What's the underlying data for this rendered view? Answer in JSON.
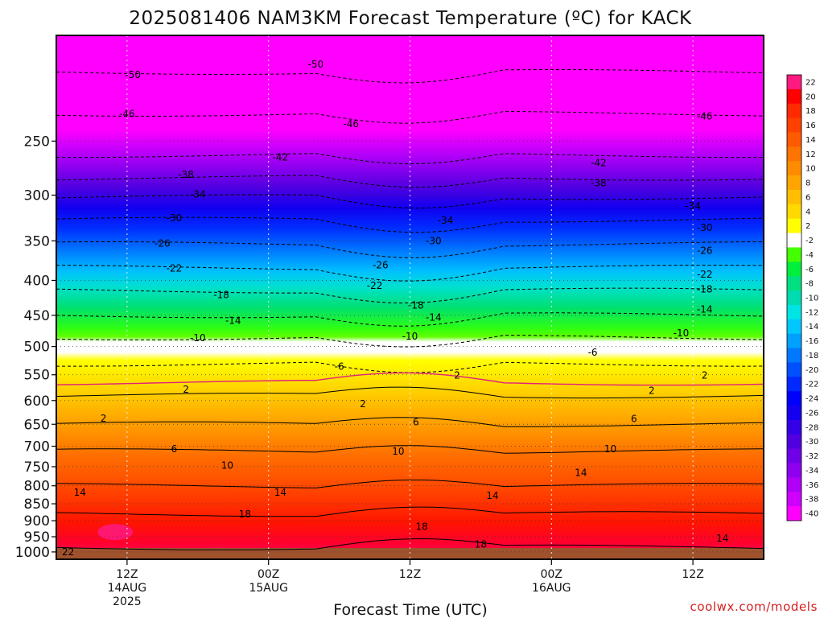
{
  "chart_data": {
    "type": "heatmap",
    "title": "2025081406 NAM3KM Forecast Temperature (ºC) for KACK",
    "xlabel": "Forecast Time (UTC)",
    "ylabel": "",
    "y_scale": "log-pressure",
    "ylim_hPa": [
      1025,
      175
    ],
    "y_ticks": [
      "250",
      "300",
      "350",
      "400",
      "450",
      "500",
      "550",
      "600",
      "650",
      "700",
      "750",
      "800",
      "850",
      "900",
      "950",
      "1000"
    ],
    "x_ticks": [
      {
        "hour": "12Z",
        "date": "14AUG",
        "year": "2025"
      },
      {
        "hour": "00Z",
        "date": "15AUG",
        "year": ""
      },
      {
        "hour": "12Z",
        "date": "",
        "year": ""
      },
      {
        "hour": "00Z",
        "date": "16AUG",
        "year": ""
      },
      {
        "hour": "12Z",
        "date": "",
        "year": ""
      }
    ],
    "xlim_hours": [
      6,
      66
    ],
    "grid": true,
    "legend": "right colorbar",
    "colorbar_ticks": [
      "22",
      "20",
      "18",
      "16",
      "14",
      "12",
      "10",
      "8",
      "6",
      "4",
      "2",
      "-2",
      "-4",
      "-6",
      "-8",
      "-10",
      "-12",
      "-14",
      "-16",
      "-18",
      "-20",
      "-22",
      "-24",
      "-26",
      "-28",
      "-30",
      "-32",
      "-34",
      "-36",
      "-38",
      "-40"
    ],
    "colorbar_colors": [
      "#ff1a80",
      "#ff0000",
      "#ff2a00",
      "#ff4000",
      "#ff5a00",
      "#ff7400",
      "#ff8c00",
      "#ffa400",
      "#ffbe00",
      "#ffd900",
      "#ffff00",
      "#ffffff",
      "#44ff00",
      "#00ee3c",
      "#00e080",
      "#00dcb0",
      "#00e4e4",
      "#00c8ff",
      "#00a0ff",
      "#0078ff",
      "#0050ff",
      "#0028ff",
      "#0000ff",
      "#1400f0",
      "#3400e8",
      "#5000e0",
      "#7000e8",
      "#9000f0",
      "#b000f8",
      "#d000ff",
      "#ff00ff"
    ],
    "isotherm_labels": [
      {
        "v": "-50",
        "t": 12.5,
        "p": 200,
        "dashed": true
      },
      {
        "v": "-50",
        "t": 28,
        "p": 193,
        "dashed": true
      },
      {
        "v": "-46",
        "t": 12,
        "p": 228,
        "dashed": true
      },
      {
        "v": "-46",
        "t": 31,
        "p": 236,
        "dashed": true
      },
      {
        "v": "-46",
        "t": 61,
        "p": 230,
        "dashed": true
      },
      {
        "v": "-42",
        "t": 25,
        "p": 264,
        "dashed": true
      },
      {
        "v": "-42",
        "t": 52,
        "p": 269,
        "dashed": true
      },
      {
        "v": "-38",
        "t": 17,
        "p": 280,
        "dashed": true
      },
      {
        "v": "-38",
        "t": 52,
        "p": 288,
        "dashed": true
      },
      {
        "v": "-34",
        "t": 18,
        "p": 299,
        "dashed": true
      },
      {
        "v": "-34",
        "t": 39,
        "p": 327,
        "dashed": true
      },
      {
        "v": "-34",
        "t": 60,
        "p": 311,
        "dashed": true
      },
      {
        "v": "-30",
        "t": 16,
        "p": 324,
        "dashed": true
      },
      {
        "v": "-30",
        "t": 38,
        "p": 350,
        "dashed": true
      },
      {
        "v": "-30",
        "t": 61,
        "p": 335,
        "dashed": true
      },
      {
        "v": "-26",
        "t": 15,
        "p": 353,
        "dashed": true
      },
      {
        "v": "-26",
        "t": 33.5,
        "p": 380,
        "dashed": true
      },
      {
        "v": "-26",
        "t": 61,
        "p": 362,
        "dashed": true
      },
      {
        "v": "-22",
        "t": 16,
        "p": 384,
        "dashed": true
      },
      {
        "v": "-22",
        "t": 33,
        "p": 407,
        "dashed": true
      },
      {
        "v": "-22",
        "t": 61,
        "p": 392,
        "dashed": true
      },
      {
        "v": "-18",
        "t": 20,
        "p": 420,
        "dashed": true
      },
      {
        "v": "-18",
        "t": 36.5,
        "p": 435,
        "dashed": true
      },
      {
        "v": "-18",
        "t": 61,
        "p": 412,
        "dashed": true
      },
      {
        "v": "-14",
        "t": 21,
        "p": 458,
        "dashed": true
      },
      {
        "v": "-14",
        "t": 38,
        "p": 453,
        "dashed": true
      },
      {
        "v": "-14",
        "t": 61,
        "p": 441,
        "dashed": true
      },
      {
        "v": "-10",
        "t": 18,
        "p": 486,
        "dashed": true
      },
      {
        "v": "-10",
        "t": 36,
        "p": 483,
        "dashed": true
      },
      {
        "v": "-10",
        "t": 59,
        "p": 478,
        "dashed": true
      },
      {
        "v": "-6",
        "t": 30,
        "p": 535,
        "dashed": true
      },
      {
        "v": "-6",
        "t": 51.5,
        "p": 510,
        "dashed": true
      },
      {
        "v": "2",
        "t": 17,
        "p": 578,
        "dashed": false
      },
      {
        "v": "2",
        "t": 40,
        "p": 551,
        "dashed": false
      },
      {
        "v": "2",
        "t": 61,
        "p": 551,
        "dashed": false
      },
      {
        "v": "2",
        "t": 10,
        "p": 637,
        "dashed": false
      },
      {
        "v": "2",
        "t": 32,
        "p": 607,
        "dashed": false
      },
      {
        "v": "2",
        "t": 56.5,
        "p": 580,
        "dashed": false
      },
      {
        "v": "6",
        "t": 16,
        "p": 707,
        "dashed": false
      },
      {
        "v": "6",
        "t": 36.5,
        "p": 645,
        "dashed": false
      },
      {
        "v": "6",
        "t": 55,
        "p": 638,
        "dashed": false
      },
      {
        "v": "10",
        "t": 20.5,
        "p": 747,
        "dashed": false
      },
      {
        "v": "10",
        "t": 35,
        "p": 712,
        "dashed": false
      },
      {
        "v": "10",
        "t": 53,
        "p": 707,
        "dashed": false
      },
      {
        "v": "14",
        "t": 8,
        "p": 818,
        "dashed": false
      },
      {
        "v": "14",
        "t": 25,
        "p": 818,
        "dashed": false
      },
      {
        "v": "14",
        "t": 43,
        "p": 827,
        "dashed": false
      },
      {
        "v": "14",
        "t": 50.5,
        "p": 766,
        "dashed": false
      },
      {
        "v": "14",
        "t": 62.5,
        "p": 955,
        "dashed": false
      },
      {
        "v": "18",
        "t": 22,
        "p": 880,
        "dashed": false
      },
      {
        "v": "18",
        "t": 37,
        "p": 918,
        "dashed": false
      },
      {
        "v": "18",
        "t": 42,
        "p": 975,
        "dashed": false
      },
      {
        "v": "22",
        "t": 7,
        "p": 1000,
        "dashed": false
      }
    ]
  },
  "credit": "coolwx.com/models"
}
